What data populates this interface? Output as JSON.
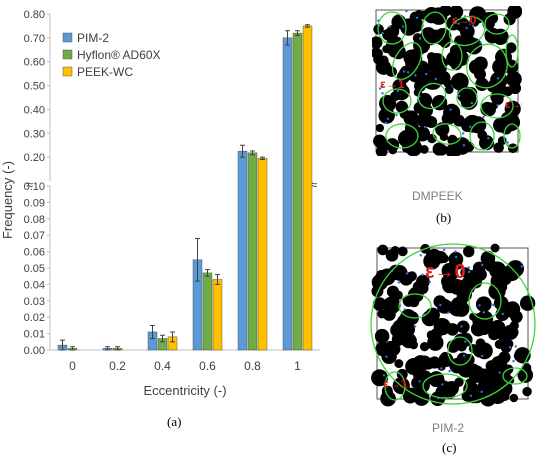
{
  "chart_data": {
    "type": "bar",
    "xlabel": "Eccentricity (-)",
    "ylabel": "Frequency (-)",
    "categories": [
      "0",
      "0.2",
      "0.4",
      "0.6",
      "0.8",
      "1"
    ],
    "axis_break": "≈",
    "lower_ylim": [
      0,
      0.1
    ],
    "lower_ticks": [
      "0.00",
      "0.01",
      "0.02",
      "0.03",
      "0.04",
      "0.05",
      "0.06",
      "0.07",
      "0.08",
      "0.09",
      "0.10"
    ],
    "upper_ylim": [
      0.1,
      0.8
    ],
    "upper_ticks": [
      "0.10",
      "0.20",
      "0.30",
      "0.40",
      "0.50",
      "0.60",
      "0.70",
      "0.80"
    ],
    "legend_position": "top-left",
    "series": [
      {
        "name": "PIM-2",
        "color": "#5b9bd5",
        "values": [
          0.003,
          0.001,
          0.011,
          0.055,
          0.225,
          0.7
        ],
        "errors": [
          0.003,
          0.001,
          0.004,
          0.013,
          0.025,
          0.03
        ]
      },
      {
        "name": "Hyflon® AD60X",
        "color": "#70ad47",
        "values": [
          0.001,
          0.001,
          0.007,
          0.047,
          0.218,
          0.72
        ],
        "errors": [
          0.001,
          0.001,
          0.002,
          0.002,
          0.008,
          0.01
        ]
      },
      {
        "name": "PEEK-WC",
        "color": "#ffc000",
        "values": [
          0.0,
          0.0,
          0.008,
          0.043,
          0.195,
          0.75
        ],
        "errors": [
          0.0,
          0.0,
          0.003,
          0.003,
          0.005,
          0.005
        ]
      }
    ]
  },
  "captions": {
    "a": "(a)",
    "b": "(b)",
    "c": "(c)",
    "dmpeek": "DMPEEK",
    "pim2": "PIM-2"
  },
  "panel_b_labels": {
    "top": "ε→0",
    "left": "ε→1",
    "right": "ε→0"
  },
  "panel_c_labels": {
    "top": "ε→0",
    "bottom": "ε→1"
  },
  "label_color": "#e0201e",
  "ring_color": "#3cd63c"
}
